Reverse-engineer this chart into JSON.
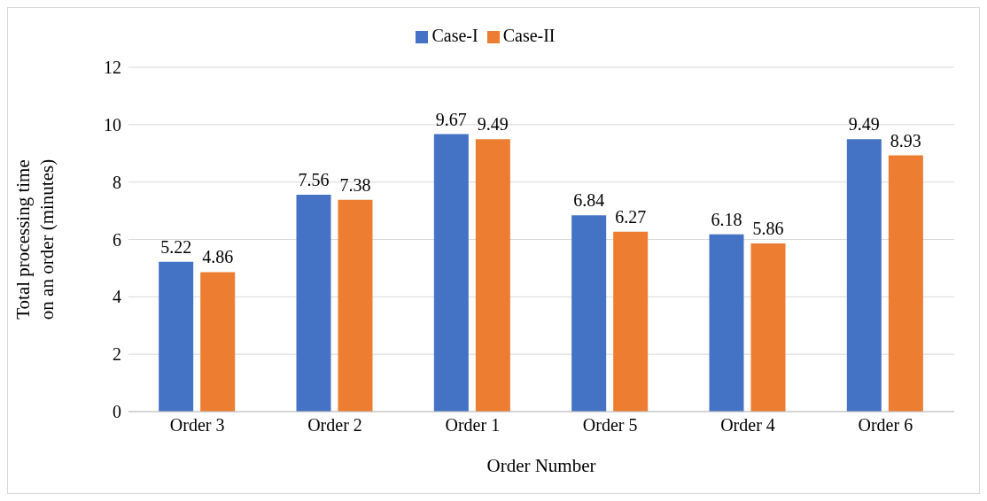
{
  "chart_data": {
    "type": "bar",
    "xlabel": "Order Number",
    "ylabel": "Total processing time on an order (minutes)",
    "categories": [
      "Order 3",
      "Order 2",
      "Order 1",
      "Order 5",
      "Order 4",
      "Order 6"
    ],
    "series": [
      {
        "name": "Case-I",
        "color": "#4472c4",
        "values": [
          5.22,
          7.56,
          9.67,
          6.84,
          6.18,
          9.49
        ]
      },
      {
        "name": "Case-II",
        "color": "#ed7d31",
        "values": [
          4.86,
          7.38,
          9.49,
          6.27,
          5.86,
          8.93
        ]
      }
    ],
    "ylim": [
      0,
      12
    ],
    "yticks": [
      0,
      2,
      4,
      6,
      8,
      10,
      12
    ],
    "grid": "y",
    "legend": "top",
    "data_labels": true
  }
}
